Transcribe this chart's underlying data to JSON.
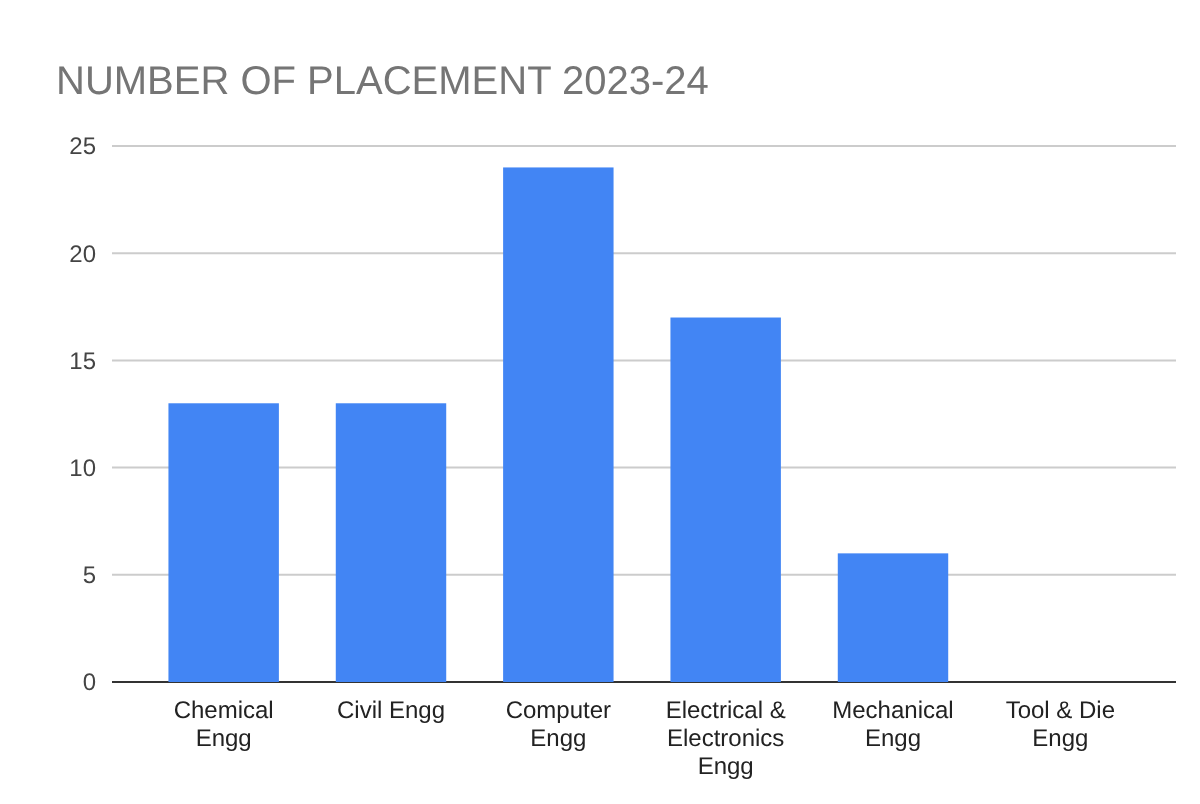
{
  "chart_data": {
    "type": "bar",
    "title": "NUMBER OF PLACEMENT 2023-24",
    "categories": [
      "Chemical Engg",
      "Civil Engg",
      "Computer Engg",
      "Electrical & Electronics Engg",
      "Mechanical Engg",
      "Tool & Die Engg"
    ],
    "values": [
      13,
      13,
      24,
      17,
      6,
      0
    ],
    "color": "#4285f4",
    "ylim": [
      0,
      25
    ],
    "yticks": [
      0,
      5,
      10,
      15,
      20,
      25
    ],
    "grid": "y"
  }
}
